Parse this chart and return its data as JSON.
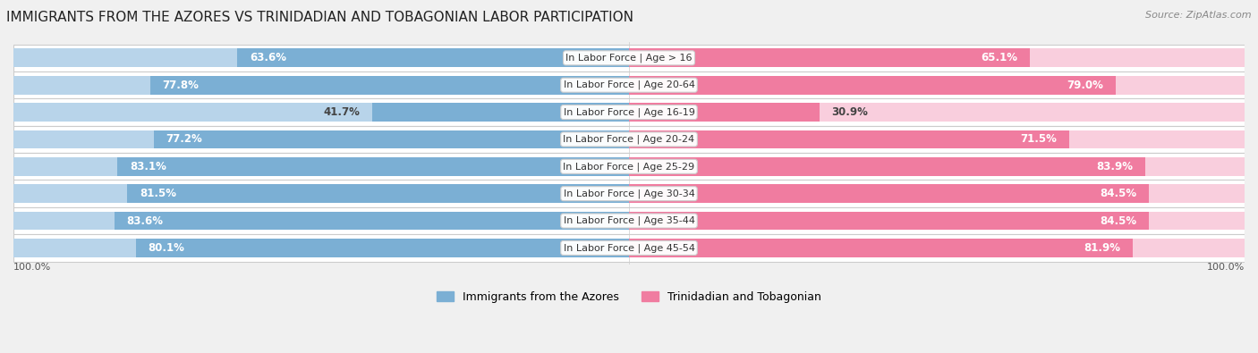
{
  "title": "IMMIGRANTS FROM THE AZORES VS TRINIDADIAN AND TOBAGONIAN LABOR PARTICIPATION",
  "source": "Source: ZipAtlas.com",
  "categories": [
    "In Labor Force | Age > 16",
    "In Labor Force | Age 20-64",
    "In Labor Force | Age 16-19",
    "In Labor Force | Age 20-24",
    "In Labor Force | Age 25-29",
    "In Labor Force | Age 30-34",
    "In Labor Force | Age 35-44",
    "In Labor Force | Age 45-54"
  ],
  "azores_values": [
    63.6,
    77.8,
    41.7,
    77.2,
    83.1,
    81.5,
    83.6,
    80.1
  ],
  "trinidad_values": [
    65.1,
    79.0,
    30.9,
    71.5,
    83.9,
    84.5,
    84.5,
    81.9
  ],
  "azores_color": "#7bafd4",
  "azores_light_color": "#b8d4ea",
  "trinidad_color": "#f07ca0",
  "trinidad_light_color": "#f9cedd",
  "bar_height": 0.68,
  "background_color": "#f0f0f0",
  "title_fontsize": 11,
  "value_fontsize": 8.5,
  "label_fontsize": 8.0,
  "legend_fontsize": 9,
  "source_fontsize": 8,
  "max_value": 100.0,
  "legend_label_azores": "Immigrants from the Azores",
  "legend_label_trinidad": "Trinidadian and Tobagonian"
}
